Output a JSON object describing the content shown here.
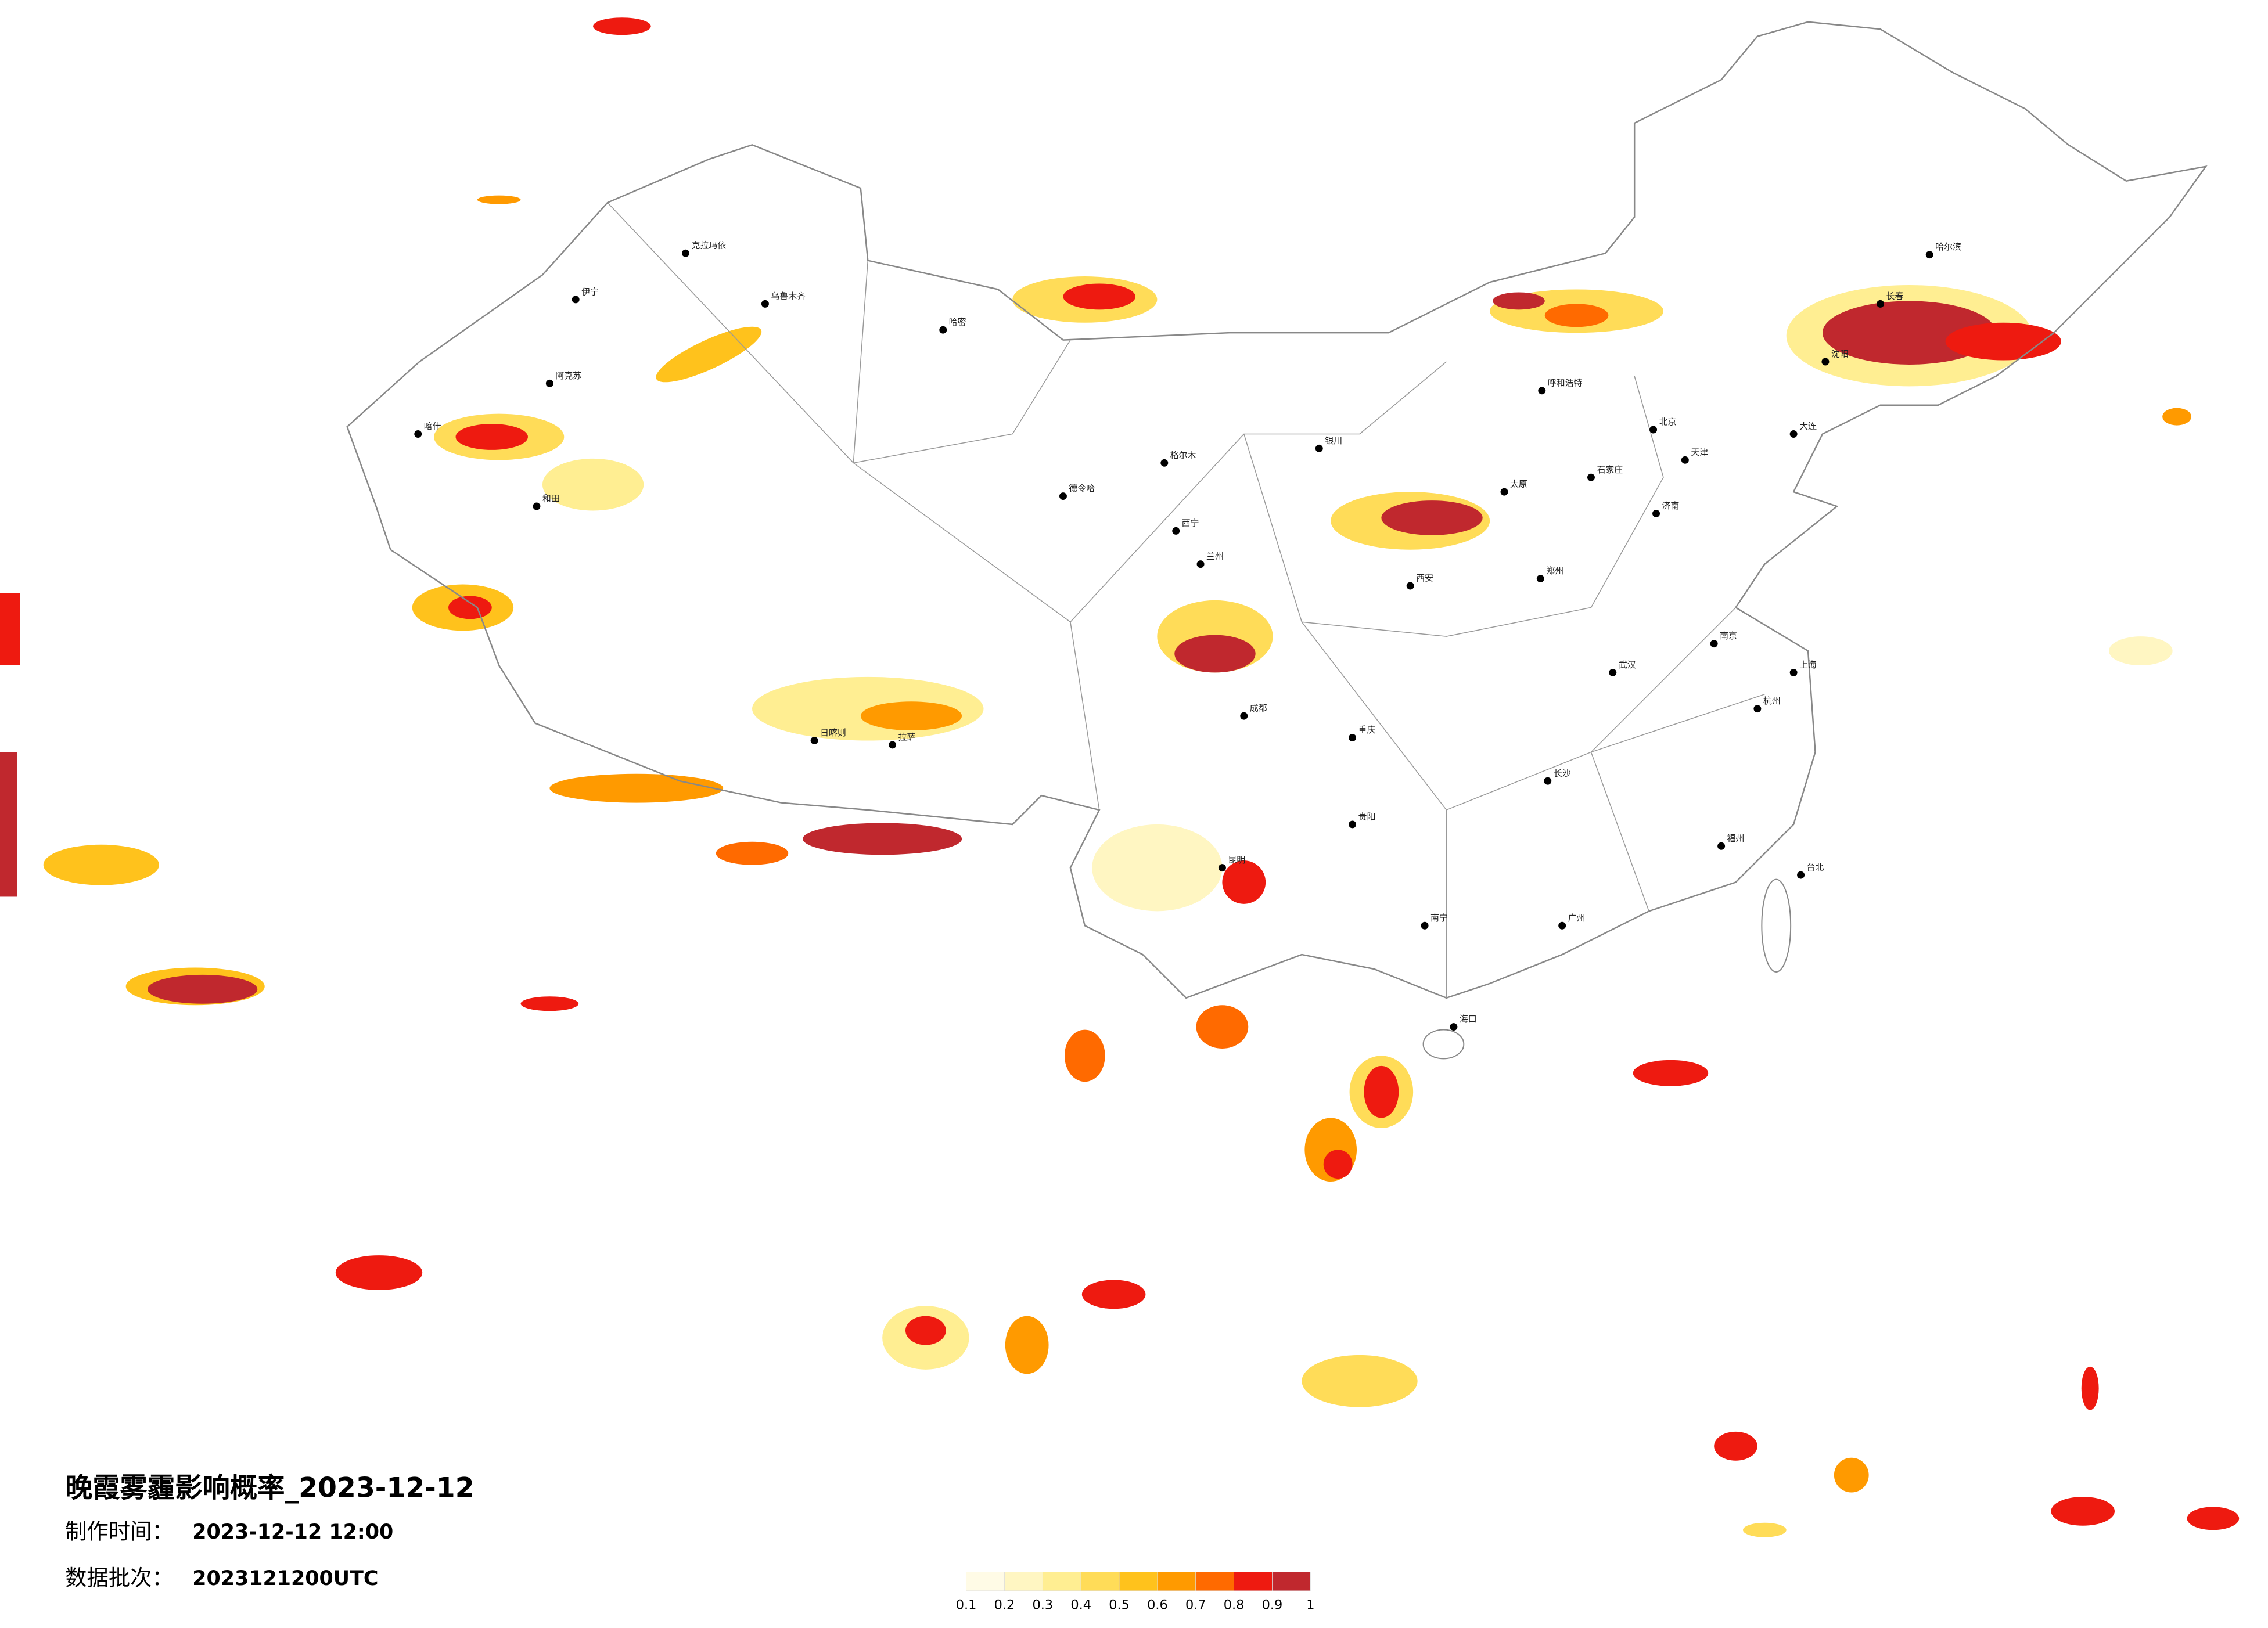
{
  "header": {
    "title": "晚霞雾霾影响概率_2023-12-12",
    "made_label": "制作时间：",
    "made_time": "2023-12-12 12:00",
    "batch_label": "数据批次：",
    "batch": "2023121200UTC"
  },
  "colorbar": {
    "ticks": [
      0.1,
      0.2,
      0.3,
      0.4,
      0.5,
      0.6,
      0.7,
      0.8,
      0.9,
      1
    ],
    "colors": [
      "#fffbe6",
      "#fff6c2",
      "#ffee92",
      "#ffdc58",
      "#ffc21c",
      "#ff9a00",
      "#ff6a00",
      "#ee1a10",
      "#c0282e"
    ]
  },
  "cities": [
    "克拉玛依",
    "乌鲁木齐",
    "伊宁",
    "阿克苏",
    "喀什",
    "和田",
    "哈密",
    "德令哈",
    "格尔木",
    "拉萨",
    "日喀则",
    "西宁",
    "兰州",
    "银川",
    "呼和浩特",
    "北京",
    "天津",
    "哈尔滨",
    "长春",
    "沈阳",
    "济南",
    "郑州",
    "西安",
    "成都",
    "重庆",
    "武汉",
    "长沙",
    "南京",
    "上海",
    "杭州",
    "福州",
    "广州",
    "南宁",
    "昆明",
    "贵阳",
    "海口",
    "台北",
    "大连",
    "石家庄",
    "太原"
  ]
}
